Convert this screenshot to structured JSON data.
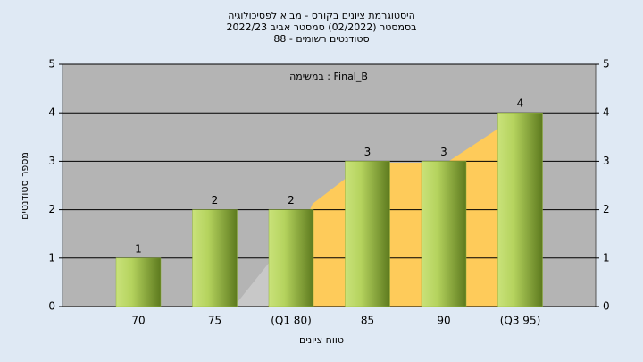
{
  "chart_data": {
    "type": "bar",
    "title": [
      "היסטוגרמת ציונים בקורס - מבוא לפסיכולוגיה",
      "בסמסטר  (02/2022)  סמסטר אביב 2022/23",
      "סטודנטים רשומים - 88"
    ],
    "annotation": "במשימה : Final_B",
    "x_label": "טווח ציונים",
    "y_label": "מספר סטודנטים",
    "categories": [
      "70",
      "75",
      "(Q1 80)",
      "85",
      "90",
      "(Q3 95)"
    ],
    "values": [
      1,
      2,
      2,
      3,
      3,
      4
    ],
    "color": "#8fb23a",
    "ylim": [
      0,
      5
    ],
    "yticks": [
      0,
      1,
      2,
      3,
      4,
      5
    ],
    "y2lim": [
      0,
      5
    ],
    "y2ticks": [
      0,
      1,
      2,
      3,
      4,
      5
    ],
    "grid": true
  }
}
